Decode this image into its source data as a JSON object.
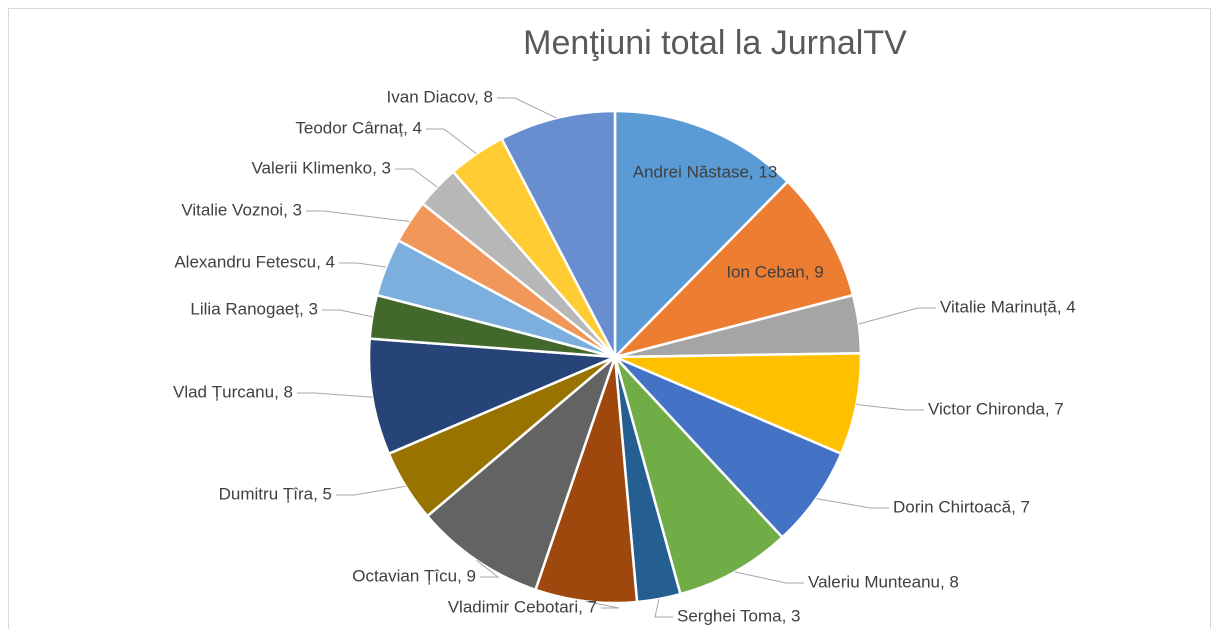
{
  "chart_data": {
    "type": "pie",
    "title": "Menţiuni total la JurnalTV",
    "categories": [
      "Andrei Năstase",
      "Ion Ceban",
      "Vitalie Marinuță",
      "Victor Chironda",
      "Dorin Chirtoacă",
      "Valeriu Munteanu",
      "Serghei Toma",
      "Vladimir Cebotari",
      "Octavian Țîcu",
      "Dumitru Țîra",
      "Vlad Țurcanu",
      "Lilia Ranogaeț",
      "Alexandru Fetescu",
      "Vitalie Voznoi",
      "Valerii Klimenko",
      "Teodor Cârnaț",
      "Ivan Diacov"
    ],
    "values": [
      13,
      9,
      4,
      7,
      7,
      8,
      3,
      7,
      9,
      5,
      8,
      3,
      4,
      3,
      3,
      4,
      8
    ],
    "value_labels": [
      "Andrei Năstase, 13",
      "Ion Ceban, 9",
      "Vitalie Marinuță, 4",
      "Victor Chironda, 7",
      "Dorin Chirtoacă, 7",
      "Valeriu Munteanu, 8",
      "Serghei Toma, 3",
      "Vladimir Cebotari, 7",
      "Octavian Țîcu, 9",
      "Dumitru Țîra, 5",
      "Vlad Țurcanu, 8",
      "Lilia Ranogaeț, 3",
      "Alexandru Fetescu, 4",
      "Vitalie Voznoi, 3",
      "Valerii Klimenko, 3",
      "Teodor Cârnaț, 4",
      "Ivan Diacov, 8"
    ],
    "colors": [
      "#5b9bd5",
      "#ed7d31",
      "#a5a5a5",
      "#ffc000",
      "#4472c4",
      "#70ad47",
      "#255e91",
      "#9e480e",
      "#636363",
      "#997300",
      "#264478",
      "#43682b",
      "#7cafdd",
      "#f1975a",
      "#b7b7b7",
      "#ffcd33",
      "#698ed0"
    ]
  }
}
